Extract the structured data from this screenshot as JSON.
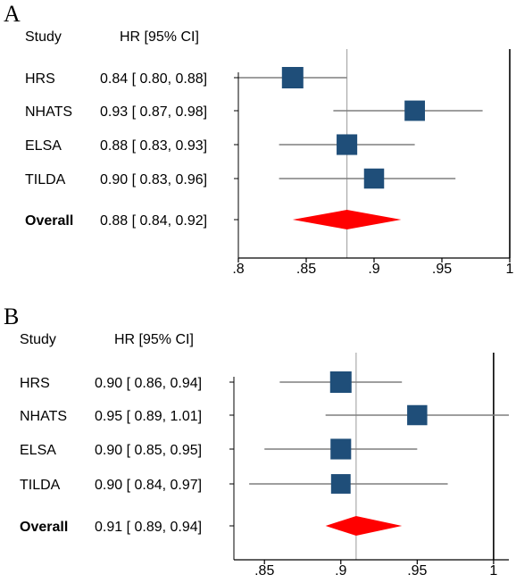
{
  "colors": {
    "marker": "#1f4e79",
    "pooled": "#ff0000",
    "ci_line": "#7f7f7f",
    "axis": "#000000",
    "ref_line": "#aaaaaa"
  },
  "chart_data": [
    {
      "type": "forest",
      "panel_label": "A",
      "col_study": "Study",
      "col_hr": "HR [95% CI]",
      "xlim": [
        0.8,
        1.0
      ],
      "xticks": [
        0.8,
        0.85,
        0.9,
        0.95,
        1.0
      ],
      "xtick_labels": [
        ".8",
        ".85",
        ".9",
        ".95",
        "1"
      ],
      "null_line": 1.0,
      "pooled_line": 0.88,
      "rows": [
        {
          "study": "HRS",
          "hr": 0.84,
          "lo": 0.8,
          "hi": 0.88,
          "label": "0.84 [ 0.80,  0.88]",
          "weight": 1.0
        },
        {
          "study": "NHATS",
          "hr": 0.93,
          "lo": 0.87,
          "hi": 0.98,
          "label": "0.93 [ 0.87,  0.98]",
          "weight": 0.8
        },
        {
          "study": "ELSA",
          "hr": 0.88,
          "lo": 0.83,
          "hi": 0.93,
          "label": "0.88 [ 0.83,  0.93]",
          "weight": 0.85
        },
        {
          "study": "TILDA",
          "hr": 0.9,
          "lo": 0.83,
          "hi": 0.96,
          "label": "0.90 [ 0.83,  0.96]",
          "weight": 0.75
        }
      ],
      "overall": {
        "study": "Overall",
        "hr": 0.88,
        "lo": 0.84,
        "hi": 0.92,
        "label": "0.88 [ 0.84,  0.92]"
      }
    },
    {
      "type": "forest",
      "panel_label": "B",
      "col_study": "Study",
      "col_hr": "HR [95% CI]",
      "xlim": [
        0.83,
        1.01
      ],
      "xticks": [
        0.85,
        0.9,
        0.95,
        1.0
      ],
      "xtick_labels": [
        ".85",
        ".9",
        ".95",
        "1"
      ],
      "null_line": 1.0,
      "pooled_line": 0.91,
      "rows": [
        {
          "study": "HRS",
          "hr": 0.9,
          "lo": 0.86,
          "hi": 0.94,
          "label": "0.90 [ 0.86,  0.94]",
          "weight": 1.0
        },
        {
          "study": "NHATS",
          "hr": 0.95,
          "lo": 0.89,
          "hi": 1.01,
          "label": "0.95 [ 0.89,  1.01]",
          "weight": 0.75
        },
        {
          "study": "ELSA",
          "hr": 0.9,
          "lo": 0.85,
          "hi": 0.95,
          "label": "0.90 [ 0.85,  0.95]",
          "weight": 0.85
        },
        {
          "study": "TILDA",
          "hr": 0.9,
          "lo": 0.84,
          "hi": 0.97,
          "label": "0.90 [ 0.84,  0.97]",
          "weight": 0.65
        }
      ],
      "overall": {
        "study": "Overall",
        "hr": 0.91,
        "lo": 0.89,
        "hi": 0.94,
        "label": "0.91 [ 0.89,  0.94]"
      }
    }
  ]
}
